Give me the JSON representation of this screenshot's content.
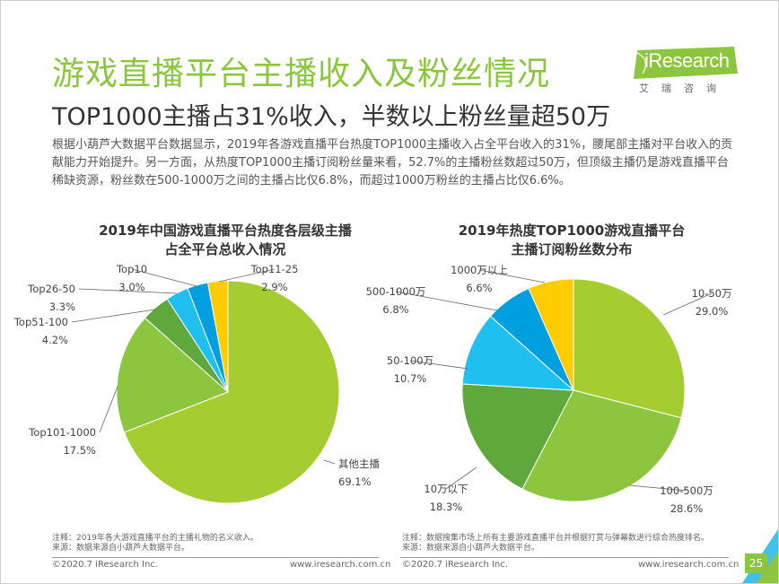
{
  "title": "游戏直播平台主播收入及粉丝情况",
  "subtitle": "TOP1000主播占31%收入，半数以上粉丝量超50万",
  "description": "根据小葫芦大数据平台数据显示，2019年各游戏直播平台热度TOP1000主播收入占全平台收入的31%，腰尾部主播对平台收入的贡献能力开始提升。另一方面，从热度TOP1000主播订阅粉丝量来看，52.7%的主播粉丝数超过50万，但顶级主播仍是游戏直播平台稀缺资源，粉丝数在500-1000万之间的主播占比仅6.8%，而超过1000万粉丝的主播占比仅6.6%。",
  "logo": {
    "brand": "iResearch",
    "chinese": "艾瑞咨询"
  },
  "colors": {
    "accent": "#8cc63f",
    "slices": [
      "#a5c92f",
      "#8cc63f",
      "#6aa83a",
      "#1fb5e8",
      "#00a0e0",
      "#ffcc00"
    ]
  },
  "chart_data": [
    {
      "type": "pie",
      "title_line1": "2019年中国游戏直播平台热度各层级主播",
      "title_line2": "占全平台总收入情况",
      "slices": [
        {
          "label": "其他主播",
          "value": 69.1,
          "display": "69.1%",
          "color": "#a5cc30"
        },
        {
          "label": "Top101-1000",
          "value": 17.5,
          "display": "17.5%",
          "color": "#8cc63f"
        },
        {
          "label": "Top51-100",
          "value": 4.2,
          "display": "4.2%",
          "color": "#5fa83c"
        },
        {
          "label": "Top26-50",
          "value": 3.3,
          "display": "3.3%",
          "color": "#1fc0ef"
        },
        {
          "label": "Top10",
          "value": 3.0,
          "display": "3.0%",
          "color": "#009fdf"
        },
        {
          "label": "Top11-25",
          "value": 2.9,
          "display": "2.9%",
          "color": "#ffcc00"
        }
      ],
      "note_line1": "注释：2019年各大游戏直播平台的主播礼物的名义收入。",
      "note_line2": "来源：数据来源自小葫芦大数据平台。"
    },
    {
      "type": "pie",
      "title_line1": "2019年热度TOP1000游戏直播平台",
      "title_line2": "主播订阅粉丝数分布",
      "slices": [
        {
          "label": "10-50万",
          "value": 29.0,
          "display": "29.0%",
          "color": "#a5cc30"
        },
        {
          "label": "100-500万",
          "value": 28.6,
          "display": "28.6%",
          "color": "#8cc63f"
        },
        {
          "label": "10万以下",
          "value": 18.3,
          "display": "18.3%",
          "color": "#5fa83c"
        },
        {
          "label": "50-100万",
          "value": 10.7,
          "display": "10.7%",
          "color": "#1fc0ef"
        },
        {
          "label": "500-1000万",
          "value": 6.8,
          "display": "6.8%",
          "color": "#009fdf"
        },
        {
          "label": "1000万以上",
          "value": 6.6,
          "display": "6.6%",
          "color": "#ffcc00"
        }
      ],
      "note_line1": "注释：数据搜集市场上所有主要游戏直播平台并根据打赏与弹幕数进行综合热度排名。",
      "note_line2": "来源：数据来源自小葫芦大数据平台。"
    }
  ],
  "footer": {
    "left_copyright": "©2020.7 iResearch Inc.",
    "left_url": "www.iresearch.com.cn",
    "right_copyright": "©2020.7 iResearch Inc.",
    "right_url": "www.iresearch.com.cn",
    "page": "25"
  }
}
